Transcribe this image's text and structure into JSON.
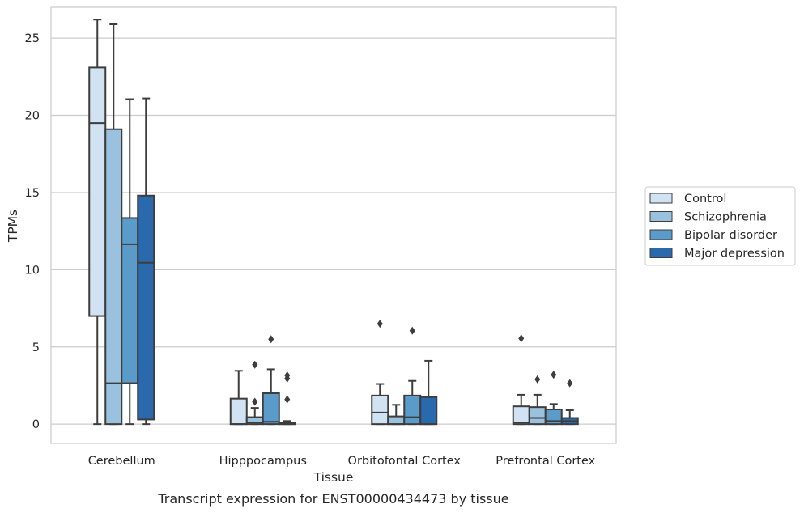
{
  "chart_data": {
    "type": "box",
    "caption": "Transcript expression for ENST00000434473 by tissue",
    "xlabel": "Tissue",
    "ylabel": "TPMs",
    "ylim": [
      -1.25,
      27.0
    ],
    "yticks": [
      0,
      5,
      10,
      15,
      20,
      25
    ],
    "grid": "horizontal",
    "legend_position": "right",
    "categories": [
      "Cerebellum",
      "Hipppocampus",
      "Orbitofontal Cortex",
      "Prefrontal Cortex"
    ],
    "series": [
      {
        "name": "Control",
        "color": "#d1e2f2",
        "boxes": [
          {
            "whislo": 0.0,
            "q1": 7.0,
            "med": 19.5,
            "q3": 23.1,
            "whishi": 26.2,
            "fliers": []
          },
          {
            "whislo": 0.0,
            "q1": 0.0,
            "med": 0.0,
            "q3": 1.65,
            "whishi": 3.45,
            "fliers": []
          },
          {
            "whislo": 0.0,
            "q1": 0.0,
            "med": 0.75,
            "q3": 1.85,
            "whishi": 2.6,
            "fliers": [
              6.5
            ]
          },
          {
            "whislo": 0.0,
            "q1": 0.0,
            "med": 0.1,
            "q3": 1.15,
            "whishi": 1.9,
            "fliers": [
              5.55
            ]
          }
        ]
      },
      {
        "name": "Schizophrenia",
        "color": "#9ac1dd",
        "boxes": [
          {
            "whislo": 0.0,
            "q1": 0.0,
            "med": 2.65,
            "q3": 19.1,
            "whishi": 25.9,
            "fliers": []
          },
          {
            "whislo": 0.0,
            "q1": 0.0,
            "med": 0.1,
            "q3": 0.45,
            "whishi": 1.05,
            "fliers": [
              1.45,
              3.85
            ]
          },
          {
            "whislo": 0.0,
            "q1": 0.0,
            "med": 0.0,
            "q3": 0.5,
            "whishi": 1.25,
            "fliers": []
          },
          {
            "whislo": 0.0,
            "q1": 0.0,
            "med": 0.4,
            "q3": 1.1,
            "whishi": 1.9,
            "fliers": [
              2.9
            ]
          }
        ]
      },
      {
        "name": "Bipolar disorder",
        "color": "#5b9bc9",
        "boxes": [
          {
            "whislo": 0.0,
            "q1": 2.65,
            "med": 11.65,
            "q3": 13.35,
            "whishi": 21.05,
            "fliers": []
          },
          {
            "whislo": 0.0,
            "q1": 0.0,
            "med": 0.15,
            "q3": 2.0,
            "whishi": 3.55,
            "fliers": [
              5.5
            ]
          },
          {
            "whislo": 0.0,
            "q1": 0.0,
            "med": 0.45,
            "q3": 1.85,
            "whishi": 2.8,
            "fliers": [
              6.05
            ]
          },
          {
            "whislo": 0.0,
            "q1": 0.0,
            "med": 0.2,
            "q3": 0.95,
            "whishi": 1.3,
            "fliers": [
              3.2
            ]
          }
        ]
      },
      {
        "name": "Major depression",
        "color": "#2a6aac",
        "boxes": [
          {
            "whislo": 0.0,
            "q1": 0.3,
            "med": 10.45,
            "q3": 14.8,
            "whishi": 21.1,
            "fliers": []
          },
          {
            "whislo": 0.0,
            "q1": 0.0,
            "med": 0.0,
            "q3": 0.1,
            "whishi": 0.2,
            "fliers": [
              1.6,
              2.95,
              3.15
            ]
          },
          {
            "whislo": 0.0,
            "q1": 0.0,
            "med": 0.0,
            "q3": 1.75,
            "whishi": 4.1,
            "fliers": []
          },
          {
            "whislo": 0.0,
            "q1": 0.0,
            "med": 0.2,
            "q3": 0.4,
            "whishi": 0.9,
            "fliers": [
              2.65
            ]
          }
        ]
      }
    ]
  }
}
